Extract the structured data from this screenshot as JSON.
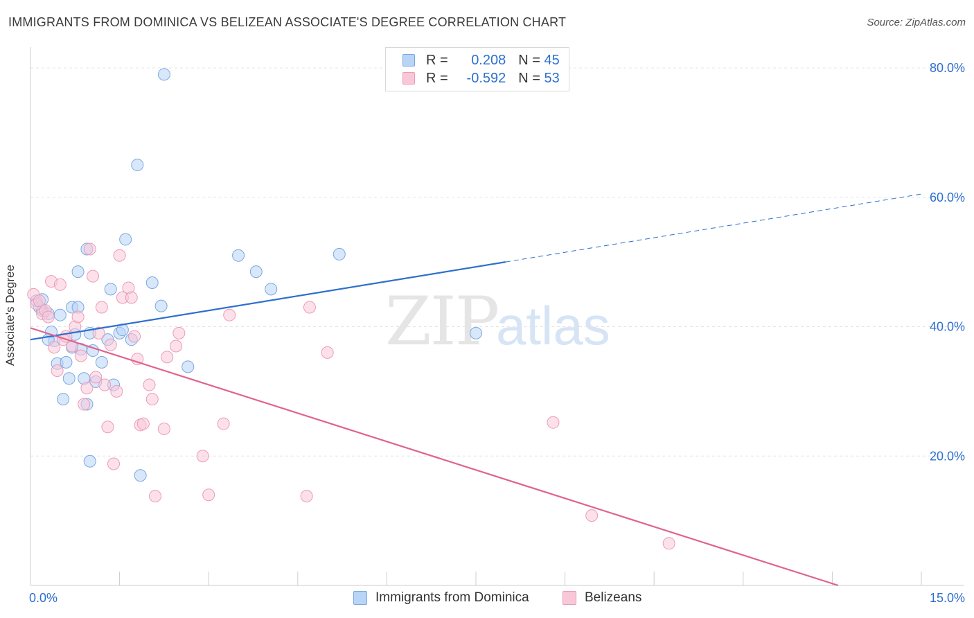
{
  "title": "IMMIGRANTS FROM DOMINICA VS BELIZEAN ASSOCIATE'S DEGREE CORRELATION CHART",
  "source": "Source: ZipAtlas.com",
  "watermark": {
    "zip": "ZIP",
    "atlas": "atlas"
  },
  "legend": {
    "rows": [
      {
        "r_label": "R =",
        "r_value": "0.208",
        "n_label": "N =",
        "n_value": "45"
      },
      {
        "r_label": "R =",
        "r_value": "-0.592",
        "n_label": "N =",
        "n_value": "53"
      }
    ]
  },
  "colors": {
    "blue": "#2e6fce",
    "pink": "#e0628e",
    "blue_fill": "#b8d4f6",
    "pink_fill": "#f9c8d8"
  },
  "chart_data": {
    "type": "scatter",
    "title": "IMMIGRANTS FROM DOMINICA VS BELIZEAN ASSOCIATE'S DEGREE CORRELATION CHART",
    "xlabel": "",
    "ylabel": "Associate's Degree",
    "xlim": [
      0,
      15
    ],
    "ylim": [
      0,
      80
    ],
    "x_tick_labels": [
      "0.0%",
      "15.0%"
    ],
    "y_ticks": [
      20,
      40,
      60,
      80
    ],
    "y_tick_labels": [
      "20.0%",
      "40.0%",
      "60.0%",
      "80.0%"
    ],
    "grid": true,
    "series": [
      {
        "name": "Immigrants from Dominica",
        "color": "#2e6fce",
        "trend": {
          "x0": 0,
          "y0": 38.0,
          "x1": 8.0,
          "y1": 50.0,
          "dash_x1": 15.0,
          "dash_y1": 60.5
        },
        "points": [
          [
            0.1,
            44.0
          ],
          [
            0.15,
            43.0
          ],
          [
            0.2,
            42.5
          ],
          [
            0.3,
            42.0
          ],
          [
            0.35,
            39.2
          ],
          [
            0.4,
            37.8
          ],
          [
            0.3,
            38.0
          ],
          [
            0.45,
            34.3
          ],
          [
            0.5,
            41.8
          ],
          [
            0.6,
            34.5
          ],
          [
            0.7,
            36.8
          ],
          [
            0.65,
            32.0
          ],
          [
            0.55,
            28.8
          ],
          [
            0.75,
            38.8
          ],
          [
            0.8,
            48.5
          ],
          [
            0.95,
            52.0
          ],
          [
            0.7,
            43.0
          ],
          [
            0.85,
            36.5
          ],
          [
            0.95,
            28.0
          ],
          [
            0.9,
            32.0
          ],
          [
            1.0,
            39.0
          ],
          [
            1.05,
            36.3
          ],
          [
            1.1,
            31.5
          ],
          [
            1.2,
            34.5
          ],
          [
            1.3,
            38.0
          ],
          [
            1.35,
            45.8
          ],
          [
            1.4,
            31.0
          ],
          [
            1.5,
            39.0
          ],
          [
            1.6,
            53.5
          ],
          [
            1.55,
            39.5
          ],
          [
            1.7,
            38.0
          ],
          [
            1.8,
            65.0
          ],
          [
            2.05,
            46.8
          ],
          [
            2.2,
            43.2
          ],
          [
            2.25,
            79.0
          ],
          [
            1.85,
            17.0
          ],
          [
            1.0,
            19.2
          ],
          [
            2.65,
            33.8
          ],
          [
            3.5,
            51.0
          ],
          [
            3.8,
            48.5
          ],
          [
            4.05,
            45.8
          ],
          [
            5.2,
            51.2
          ],
          [
            7.5,
            39.0
          ],
          [
            0.8,
            43.0
          ],
          [
            0.2,
            44.2
          ]
        ]
      },
      {
        "name": "Belizeans",
        "color": "#e0628e",
        "trend": {
          "x0": 0,
          "y0": 39.8,
          "x1": 13.6,
          "y1": 0.0
        },
        "points": [
          [
            0.05,
            45.0
          ],
          [
            0.1,
            43.5
          ],
          [
            0.15,
            44.0
          ],
          [
            0.2,
            42.0
          ],
          [
            0.25,
            42.5
          ],
          [
            0.3,
            41.5
          ],
          [
            0.35,
            47.0
          ],
          [
            0.4,
            36.8
          ],
          [
            0.45,
            33.2
          ],
          [
            0.5,
            46.5
          ],
          [
            0.55,
            38.0
          ],
          [
            0.6,
            38.5
          ],
          [
            0.7,
            37.0
          ],
          [
            0.75,
            40.0
          ],
          [
            0.8,
            41.5
          ],
          [
            0.85,
            35.5
          ],
          [
            0.9,
            28.0
          ],
          [
            0.95,
            30.5
          ],
          [
            1.0,
            52.0
          ],
          [
            1.05,
            47.8
          ],
          [
            1.1,
            32.2
          ],
          [
            1.15,
            39.0
          ],
          [
            1.2,
            43.0
          ],
          [
            1.25,
            31.0
          ],
          [
            1.3,
            24.5
          ],
          [
            1.35,
            37.2
          ],
          [
            1.4,
            18.8
          ],
          [
            1.45,
            30.0
          ],
          [
            1.5,
            51.0
          ],
          [
            1.55,
            44.5
          ],
          [
            1.65,
            46.0
          ],
          [
            1.7,
            44.5
          ],
          [
            1.75,
            38.5
          ],
          [
            1.8,
            35.0
          ],
          [
            1.85,
            24.8
          ],
          [
            1.9,
            25.0
          ],
          [
            2.0,
            31.0
          ],
          [
            2.05,
            28.8
          ],
          [
            2.1,
            13.8
          ],
          [
            2.25,
            24.2
          ],
          [
            2.3,
            35.3
          ],
          [
            2.45,
            37.0
          ],
          [
            2.5,
            39.0
          ],
          [
            2.9,
            20.0
          ],
          [
            3.0,
            14.0
          ],
          [
            3.25,
            25.0
          ],
          [
            3.35,
            41.8
          ],
          [
            4.65,
            13.8
          ],
          [
            4.7,
            43.0
          ],
          [
            5.0,
            36.0
          ],
          [
            8.8,
            25.2
          ],
          [
            9.45,
            10.8
          ],
          [
            10.75,
            6.5
          ]
        ]
      }
    ]
  }
}
